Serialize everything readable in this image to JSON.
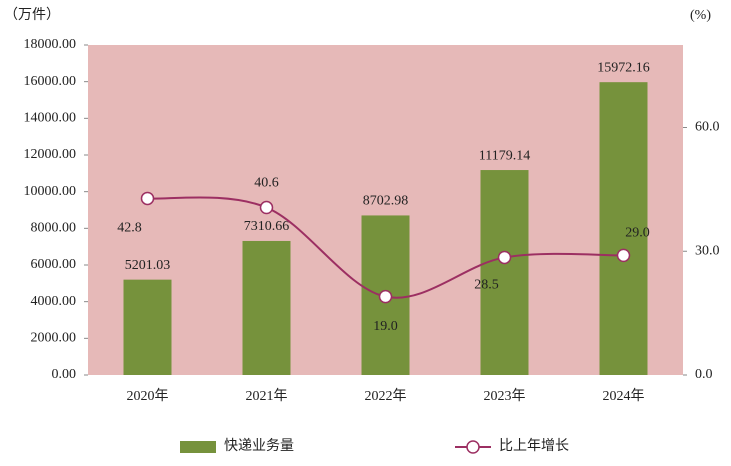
{
  "chart_data": {
    "type": "bar_line",
    "y_unit_label": "（万件）",
    "y2_unit_label": "(%)",
    "categories": [
      "2020年",
      "2021年",
      "2022年",
      "2023年",
      "2024年"
    ],
    "series": [
      {
        "name": "快递业务量",
        "type": "bar",
        "color": "#76923c",
        "values": [
          5201.03,
          7310.66,
          8702.98,
          11179.14,
          15972.16
        ]
      },
      {
        "name": "比上年增长",
        "type": "line",
        "axis": "y2",
        "color": "#9c2f62",
        "values": [
          42.8,
          40.6,
          19,
          28.5,
          29
        ],
        "value_labels": [
          "42.8",
          "40.6",
          "19.0",
          "28.5",
          "29.0"
        ]
      }
    ],
    "ylim": [
      0,
      18000
    ],
    "yticks": [
      {
        "value": 0,
        "label": "0.00"
      },
      {
        "value": 2000,
        "label": "2000.00"
      },
      {
        "value": 4000,
        "label": "4000.00"
      },
      {
        "value": 6000,
        "label": "6000.00"
      },
      {
        "value": 8000,
        "label": "8000.00"
      },
      {
        "value": 10000,
        "label": "10000.00"
      },
      {
        "value": 12000,
        "label": "12000.00"
      },
      {
        "value": 14000,
        "label": "14000.00"
      },
      {
        "value": 16000,
        "label": "16000.00"
      },
      {
        "value": 18000,
        "label": "18000.00"
      }
    ],
    "y2lim": [
      0,
      80
    ],
    "y2ticks": [
      {
        "value": 0,
        "label": "0.0"
      },
      {
        "value": 30,
        "label": "30.0"
      },
      {
        "value": 60,
        "label": "60.0"
      }
    ],
    "plot_background": "#e6b9b8"
  }
}
